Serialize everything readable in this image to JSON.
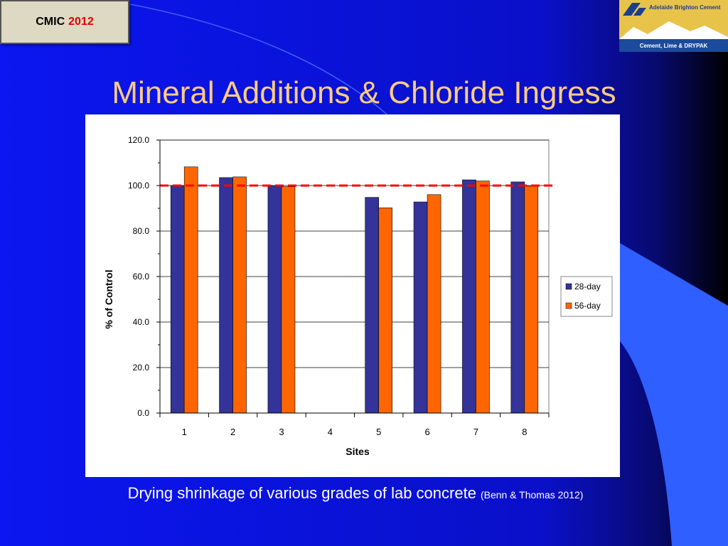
{
  "badge": {
    "text": "CMIC",
    "year": "2012"
  },
  "logo": {
    "top_text": "Adelaide Brighton Cement",
    "bottom_text": "Cement, Lime & DRYPAK"
  },
  "slide": {
    "title": "Mineral Additions & Chloride Ingress",
    "caption": "Drying shrinkage of various grades of lab concrete",
    "citation": "(Benn & Thomas 2012)"
  },
  "colors": {
    "background": "#0a14e6",
    "title": "#ffcc80",
    "series_28": "#333399",
    "series_56": "#ff6600",
    "reference_line": "#ff0000"
  },
  "chart_data": {
    "type": "bar",
    "categories": [
      "1",
      "2",
      "3",
      "4",
      "5",
      "6",
      "7",
      "8"
    ],
    "series": [
      {
        "name": "28-day",
        "values": [
          100.0,
          103.5,
          99.8,
          null,
          94.8,
          92.8,
          102.5,
          101.6
        ]
      },
      {
        "name": "56-day",
        "values": [
          108.2,
          103.8,
          99.5,
          null,
          90.2,
          96.0,
          102.0,
          99.7
        ]
      }
    ],
    "reference_line": {
      "y": 100.0,
      "style": "dashed"
    },
    "xlabel": "Sites",
    "ylabel": "% of Control",
    "ylim": [
      0,
      120
    ],
    "yticks": [
      "0.0",
      "20.0",
      "40.0",
      "60.0",
      "80.0",
      "100.0",
      "120.0"
    ],
    "grid": true,
    "legend": "right"
  }
}
